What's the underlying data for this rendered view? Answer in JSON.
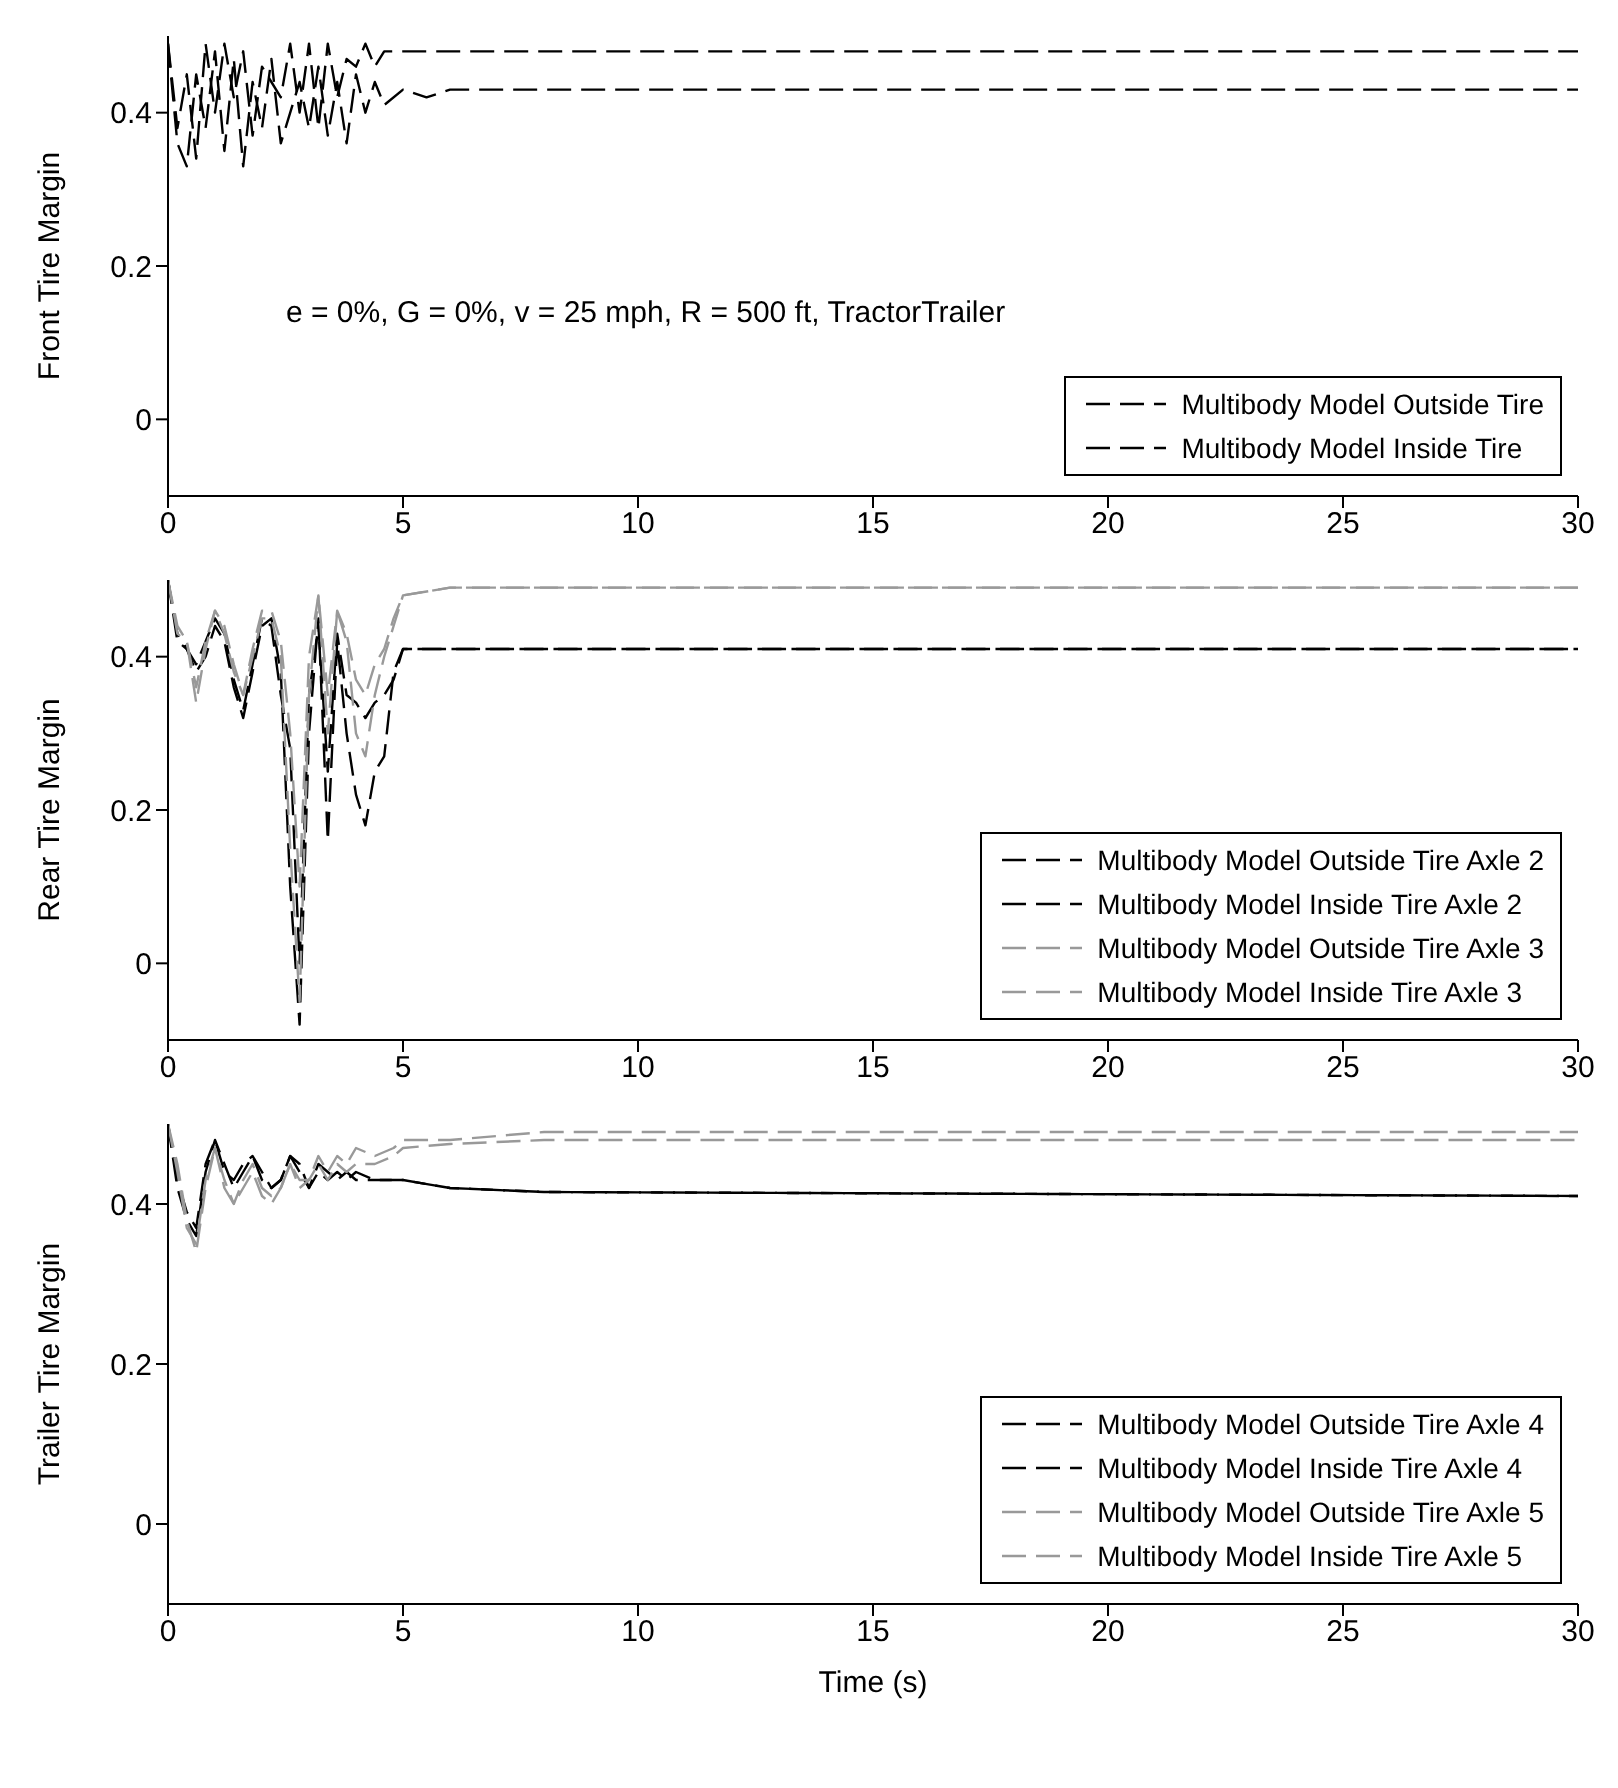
{
  "chart_data": [
    {
      "type": "line",
      "ylabel": "Front Tire Margin",
      "annotations": [
        "e = 0%, G = 0%, v = 25 mph, R = 500 ft, TractorTrailer"
      ],
      "xlim": [
        0,
        30
      ],
      "xticks": [
        0,
        5,
        10,
        15,
        20,
        25,
        30
      ],
      "ylim": [
        -0.1,
        0.5
      ],
      "yticks": [
        0,
        0.2,
        0.4
      ],
      "legend": "bottom right",
      "line_style": "dashed",
      "x": [
        0,
        0.2,
        0.4,
        0.6,
        0.8,
        1,
        1.2,
        1.4,
        1.6,
        1.8,
        2,
        2.2,
        2.4,
        2.6,
        2.8,
        3,
        3.2,
        3.4,
        3.6,
        3.8,
        4,
        4.2,
        4.4,
        4.6,
        5,
        5.5,
        6,
        30
      ],
      "series": [
        {
          "name": "Multibody Model Outside Tire",
          "color": "#000000",
          "values": [
            0.49,
            0.36,
            0.33,
            0.45,
            0.38,
            0.48,
            0.35,
            0.47,
            0.33,
            0.44,
            0.38,
            0.47,
            0.36,
            0.4,
            0.44,
            0.38,
            0.46,
            0.37,
            0.44,
            0.36,
            0.45,
            0.4,
            0.44,
            0.41,
            0.43,
            0.42,
            0.43,
            0.43
          ]
        },
        {
          "name": "Multibody Model Inside Tire",
          "color": "#000000",
          "values": [
            0.49,
            0.38,
            0.45,
            0.34,
            0.49,
            0.4,
            0.49,
            0.42,
            0.48,
            0.37,
            0.46,
            0.44,
            0.42,
            0.49,
            0.4,
            0.49,
            0.38,
            0.49,
            0.42,
            0.47,
            0.46,
            0.49,
            0.46,
            0.48,
            0.48,
            0.48,
            0.48,
            0.48
          ]
        }
      ]
    },
    {
      "type": "line",
      "ylabel": "Rear Tire Margin",
      "xlim": [
        0,
        30
      ],
      "xticks": [
        0,
        5,
        10,
        15,
        20,
        25,
        30
      ],
      "ylim": [
        -0.1,
        0.5
      ],
      "yticks": [
        0,
        0.2,
        0.4
      ],
      "legend": "bottom right",
      "line_style": "dashed",
      "x": [
        0,
        0.2,
        0.4,
        0.6,
        0.8,
        1,
        1.2,
        1.4,
        1.6,
        1.8,
        2,
        2.2,
        2.4,
        2.6,
        2.8,
        3,
        3.2,
        3.4,
        3.6,
        3.8,
        4,
        4.2,
        4.4,
        4.6,
        4.8,
        5,
        6,
        30
      ],
      "series": [
        {
          "name": "Multibody Model Outside Tire Axle 2",
          "color": "#000000",
          "values": [
            0.5,
            0.42,
            0.41,
            0.38,
            0.4,
            0.44,
            0.42,
            0.36,
            0.32,
            0.38,
            0.44,
            0.45,
            0.38,
            0.1,
            -0.08,
            0.3,
            0.45,
            0.16,
            0.42,
            0.3,
            0.22,
            0.18,
            0.25,
            0.27,
            0.38,
            0.41,
            0.41,
            0.41
          ]
        },
        {
          "name": "Multibody Model Inside Tire Axle 2",
          "color": "#000000",
          "values": [
            0.5,
            0.43,
            0.41,
            0.39,
            0.42,
            0.45,
            0.43,
            0.37,
            0.33,
            0.39,
            0.45,
            0.44,
            0.35,
            0.28,
            0,
            0.35,
            0.44,
            0.25,
            0.43,
            0.35,
            0.34,
            0.32,
            0.34,
            0.35,
            0.37,
            0.41,
            0.41,
            0.41
          ]
        },
        {
          "name": "Multibody Model Outside Tire Axle 3",
          "color": "#999999",
          "values": [
            0.5,
            0.43,
            0.42,
            0.36,
            0.42,
            0.46,
            0.43,
            0.38,
            0.35,
            0.4,
            0.45,
            0.45,
            0.4,
            0.15,
            -0.05,
            0.35,
            0.48,
            0.3,
            0.46,
            0.42,
            0.3,
            0.27,
            0.35,
            0.4,
            0.44,
            0.48,
            0.49,
            0.49
          ]
        },
        {
          "name": "Multibody Model Inside Tire Axle 3",
          "color": "#999999",
          "values": [
            0.5,
            0.44,
            0.42,
            0.34,
            0.41,
            0.46,
            0.44,
            0.39,
            0.35,
            0.41,
            0.46,
            0.46,
            0.42,
            0.3,
            0.1,
            0.4,
            0.48,
            0.35,
            0.46,
            0.43,
            0.37,
            0.35,
            0.39,
            0.41,
            0.45,
            0.48,
            0.49,
            0.49
          ]
        }
      ]
    },
    {
      "type": "line",
      "ylabel": "Trailer Tire Margin",
      "xlabel": "Time (s)",
      "xlim": [
        0,
        30
      ],
      "xticks": [
        0,
        5,
        10,
        15,
        20,
        25,
        30
      ],
      "ylim": [
        -0.1,
        0.5
      ],
      "yticks": [
        0,
        0.2,
        0.4
      ],
      "legend": "bottom right",
      "line_style": "dashed",
      "x": [
        0,
        0.2,
        0.4,
        0.6,
        0.8,
        1,
        1.2,
        1.4,
        1.6,
        1.8,
        2,
        2.2,
        2.4,
        2.6,
        2.8,
        3,
        3.2,
        3.4,
        3.6,
        3.8,
        4,
        4.4,
        4.8,
        5,
        6,
        8,
        30
      ],
      "series": [
        {
          "name": "Multibody Model Outside Tire Axle 4",
          "color": "#000000",
          "values": [
            0.5,
            0.42,
            0.38,
            0.36,
            0.44,
            0.48,
            0.45,
            0.42,
            0.44,
            0.46,
            0.43,
            0.42,
            0.43,
            0.46,
            0.44,
            0.42,
            0.44,
            0.43,
            0.44,
            0.43,
            0.44,
            0.43,
            0.43,
            0.43,
            0.42,
            0.415,
            0.41
          ]
        },
        {
          "name": "Multibody Model Inside Tire Axle 4",
          "color": "#000000",
          "values": [
            0.5,
            0.43,
            0.39,
            0.37,
            0.45,
            0.48,
            0.44,
            0.43,
            0.45,
            0.46,
            0.44,
            0.42,
            0.43,
            0.46,
            0.45,
            0.42,
            0.45,
            0.44,
            0.43,
            0.44,
            0.43,
            0.43,
            0.43,
            0.43,
            0.42,
            0.415,
            0.41
          ]
        },
        {
          "name": "Multibody Model Outside Tire Axle 5",
          "color": "#999999",
          "values": [
            0.5,
            0.44,
            0.37,
            0.35,
            0.43,
            0.47,
            0.43,
            0.4,
            0.43,
            0.45,
            0.42,
            0.41,
            0.42,
            0.45,
            0.43,
            0.43,
            0.46,
            0.44,
            0.46,
            0.45,
            0.47,
            0.46,
            0.47,
            0.48,
            0.48,
            0.49,
            0.49
          ]
        },
        {
          "name": "Multibody Model Inside Tire Axle 5",
          "color": "#999999",
          "values": [
            0.5,
            0.45,
            0.38,
            0.34,
            0.42,
            0.47,
            0.42,
            0.4,
            0.42,
            0.44,
            0.41,
            0.4,
            0.42,
            0.45,
            0.42,
            0.43,
            0.45,
            0.43,
            0.45,
            0.44,
            0.45,
            0.45,
            0.46,
            0.47,
            0.475,
            0.48,
            0.48
          ]
        }
      ]
    }
  ]
}
